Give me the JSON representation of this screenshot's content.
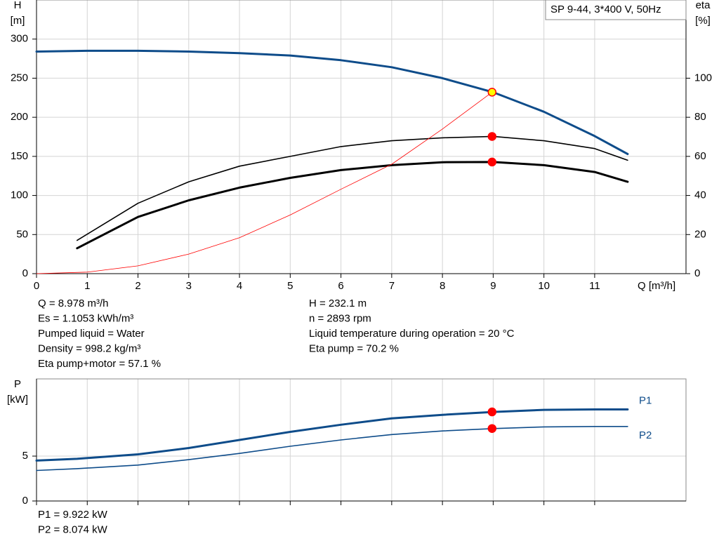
{
  "chart_data": [
    {
      "type": "line",
      "subtitle": "SP 9-44, 3*400 V, 50Hz",
      "ylabel": "H",
      "yunit": "[m]",
      "y2label": "eta",
      "y2unit": "[%]",
      "xlabel": "Q [m³/h]",
      "xlim": [
        0,
        12.8
      ],
      "xticks": [
        0,
        1,
        2,
        3,
        4,
        5,
        6,
        7,
        8,
        9,
        10,
        11
      ],
      "ylim": [
        0,
        350
      ],
      "yticks": [
        0,
        50,
        100,
        150,
        200,
        250,
        300
      ],
      "y2lim": [
        0,
        140
      ],
      "y2ticks": [
        0,
        20,
        40,
        60,
        80,
        100
      ],
      "grid": true,
      "series": [
        {
          "color": "#0e4c8a",
          "width": 3,
          "x": [
            0,
            1,
            2,
            3,
            4,
            5,
            6,
            7,
            8,
            9,
            10,
            11,
            11.65
          ],
          "values": [
            284,
            285,
            285,
            284,
            282,
            279,
            273,
            264,
            250,
            232,
            207,
            176,
            153
          ]
        },
        {
          "color": "#000000",
          "width": 1.6,
          "axis": "y2",
          "x": [
            0.8,
            2,
            3,
            4,
            5,
            6,
            7,
            8,
            9,
            10,
            11,
            11.65
          ],
          "values": [
            17,
            36,
            47,
            55,
            60,
            65,
            68,
            69.5,
            70.2,
            68,
            64,
            58
          ]
        },
        {
          "color": "#000000",
          "width": 3,
          "axis": "y2",
          "x": [
            0.8,
            2,
            3,
            4,
            5,
            6,
            7,
            8,
            9,
            10,
            11,
            11.65
          ],
          "values": [
            13,
            29,
            37.5,
            44,
            49,
            53,
            55.5,
            57,
            57.1,
            55.5,
            52,
            47
          ]
        },
        {
          "color": "#ff0000",
          "width": 0.8,
          "x": [
            0,
            1,
            2,
            3,
            4,
            5,
            6,
            7,
            8,
            8.978
          ],
          "values": [
            0,
            2,
            10,
            25,
            46,
            75,
            108,
            140,
            185,
            232.1
          ]
        }
      ],
      "points": [
        {
          "x": 8.978,
          "y": 232.1,
          "fill": "#ffff00"
        },
        {
          "x": 8.978,
          "y": 70.2,
          "axis": "y2",
          "fill": "#ff0000"
        },
        {
          "x": 8.978,
          "y": 57.1,
          "axis": "y2",
          "fill": "#ff0000"
        }
      ]
    },
    {
      "type": "line",
      "ylabel": "P",
      "yunit": "[kW]",
      "xlim": [
        0,
        12.8
      ],
      "ylim": [
        0,
        13.6
      ],
      "yticks": [
        0,
        5
      ],
      "grid": true,
      "series": [
        {
          "name": "P1",
          "color": "#0e4c8a",
          "width": 3,
          "x": [
            0,
            0.8,
            2,
            3,
            4,
            5,
            6,
            7,
            8,
            9,
            10,
            11,
            11.65
          ],
          "values": [
            4.5,
            4.7,
            5.2,
            5.9,
            6.8,
            7.7,
            8.5,
            9.2,
            9.6,
            9.92,
            10.15,
            10.2,
            10.2
          ]
        },
        {
          "name": "P2",
          "color": "#0e4c8a",
          "width": 1.6,
          "x": [
            0,
            0.8,
            2,
            3,
            4,
            5,
            6,
            7,
            8,
            9,
            10,
            11,
            11.65
          ],
          "values": [
            3.4,
            3.6,
            4.0,
            4.6,
            5.3,
            6.1,
            6.8,
            7.4,
            7.8,
            8.07,
            8.25,
            8.3,
            8.3
          ]
        }
      ],
      "points": [
        {
          "x": 8.978,
          "y": 9.922,
          "fill": "#ff0000"
        },
        {
          "x": 8.978,
          "y": 8.074,
          "fill": "#ff0000"
        }
      ]
    }
  ],
  "info_left": [
    "Q = 8.978 m³/h",
    "Es = 1.1053 kWh/m³",
    "Pumped liquid = Water",
    "Density = 998.2 kg/m³",
    "Eta pump+motor = 57.1 %"
  ],
  "info_right": [
    "H = 232.1 m",
    "n = 2893 rpm",
    "Liquid temperature during operation = 20 °C",
    "Eta pump = 70.2 %"
  ],
  "info_power": [
    "P1 = 9.922 kW",
    "P2 = 8.074 kW"
  ]
}
